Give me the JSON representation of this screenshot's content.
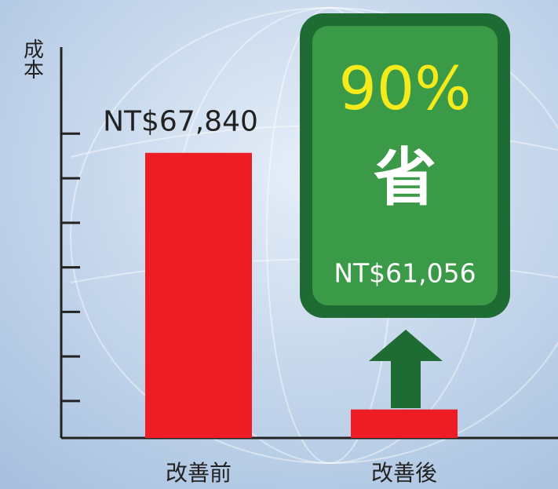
{
  "chart_data": {
    "type": "bar",
    "y_label": "成本",
    "categories": [
      "改善前",
      "改善後"
    ],
    "values": [
      67840,
      6784
    ],
    "value_labels": [
      "NT$67,840",
      null
    ],
    "color": "#ee1c25",
    "ylim": [
      0,
      93000
    ],
    "yticks": [
      8800,
      19400,
      30000,
      40600,
      51200,
      61800,
      72400
    ],
    "annotations": {
      "percent": "90%",
      "saving": "省",
      "amount": "NT$61,056"
    }
  }
}
